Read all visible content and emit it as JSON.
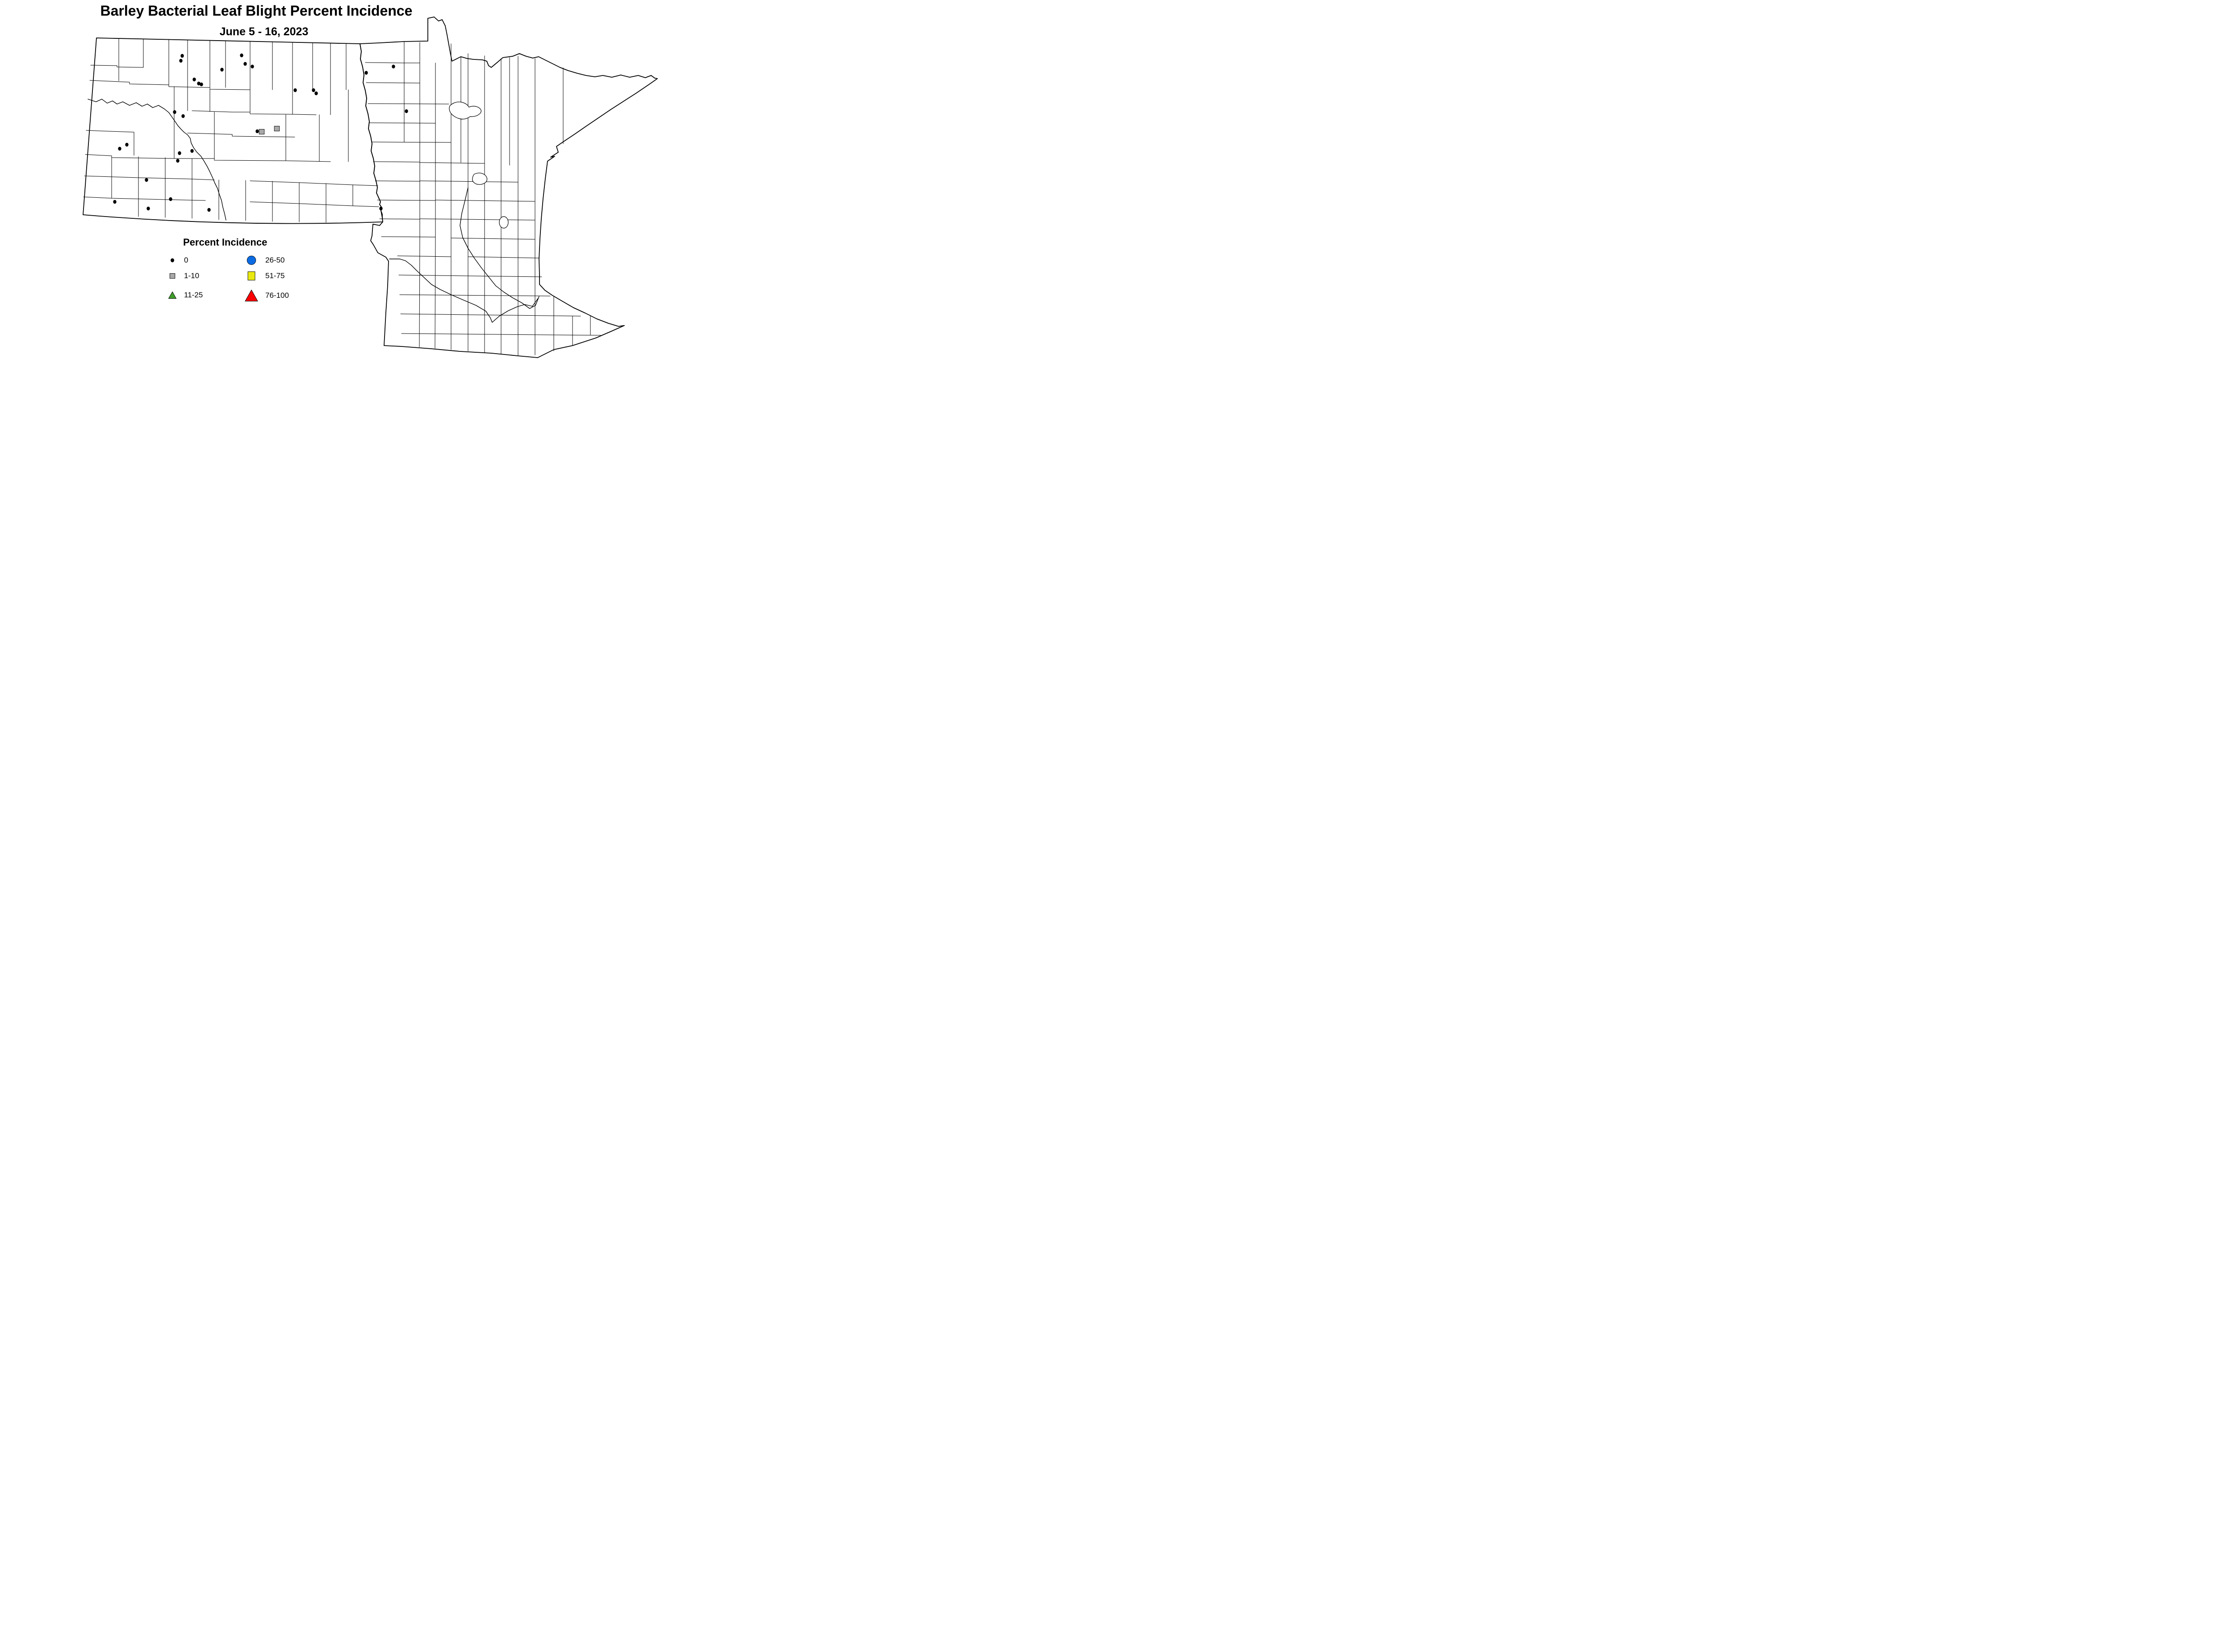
{
  "header": {
    "title": "Barley Bacterial Leaf Blight Percent Incidence",
    "subtitle": "June 5 - 16, 2023"
  },
  "legend": {
    "title": "Percent Incidence",
    "entries": [
      {
        "label": "0",
        "shape": "dot",
        "color": "#000000"
      },
      {
        "label": "1-10",
        "shape": "square",
        "color": "#a9a9a9"
      },
      {
        "label": "11-25",
        "shape": "triangle",
        "color": "#3f9e28"
      },
      {
        "label": "26-50",
        "shape": "circle",
        "color": "#0b6be3"
      },
      {
        "label": "51-75",
        "shape": "square",
        "color": "#e9e911"
      },
      {
        "label": "76-100",
        "shape": "triangle",
        "color": "#fb0000"
      }
    ]
  },
  "chart_data": {
    "type": "scatter",
    "title": "Barley Bacterial Leaf Blight Percent Incidence",
    "subtitle": "June 5 - 16, 2023",
    "map_regions": [
      "North Dakota counties",
      "Minnesota counties"
    ],
    "coordinate_space": "pixels in 1540x812 canvas",
    "legend_position": "bottom-left",
    "series": [
      {
        "name": "0",
        "marker": "dot",
        "color": "#000000",
        "points": [
          [
            408,
            125
          ],
          [
            405,
            136
          ],
          [
            541,
            124
          ],
          [
            549,
            143
          ],
          [
            565,
            149
          ],
          [
            497,
            156
          ],
          [
            435,
            178
          ],
          [
            445,
            187
          ],
          [
            451,
            189
          ],
          [
            391,
            251
          ],
          [
            410,
            260
          ],
          [
            661,
            202
          ],
          [
            702,
            202
          ],
          [
            708,
            209
          ],
          [
            820,
            163
          ],
          [
            881,
            149
          ],
          [
            910,
            249
          ],
          [
            576,
            294
          ],
          [
            284,
            324
          ],
          [
            268,
            333
          ],
          [
            430,
            338
          ],
          [
            402,
            343
          ],
          [
            398,
            360
          ],
          [
            328,
            403
          ],
          [
            257,
            452
          ],
          [
            382,
            446
          ],
          [
            332,
            467
          ],
          [
            468,
            470
          ],
          [
            853,
            467
          ]
        ]
      },
      {
        "name": "1-10",
        "marker": "square",
        "color": "#a9a9a9",
        "points": [
          [
            586,
            295
          ],
          [
            620,
            288
          ]
        ]
      }
    ]
  }
}
